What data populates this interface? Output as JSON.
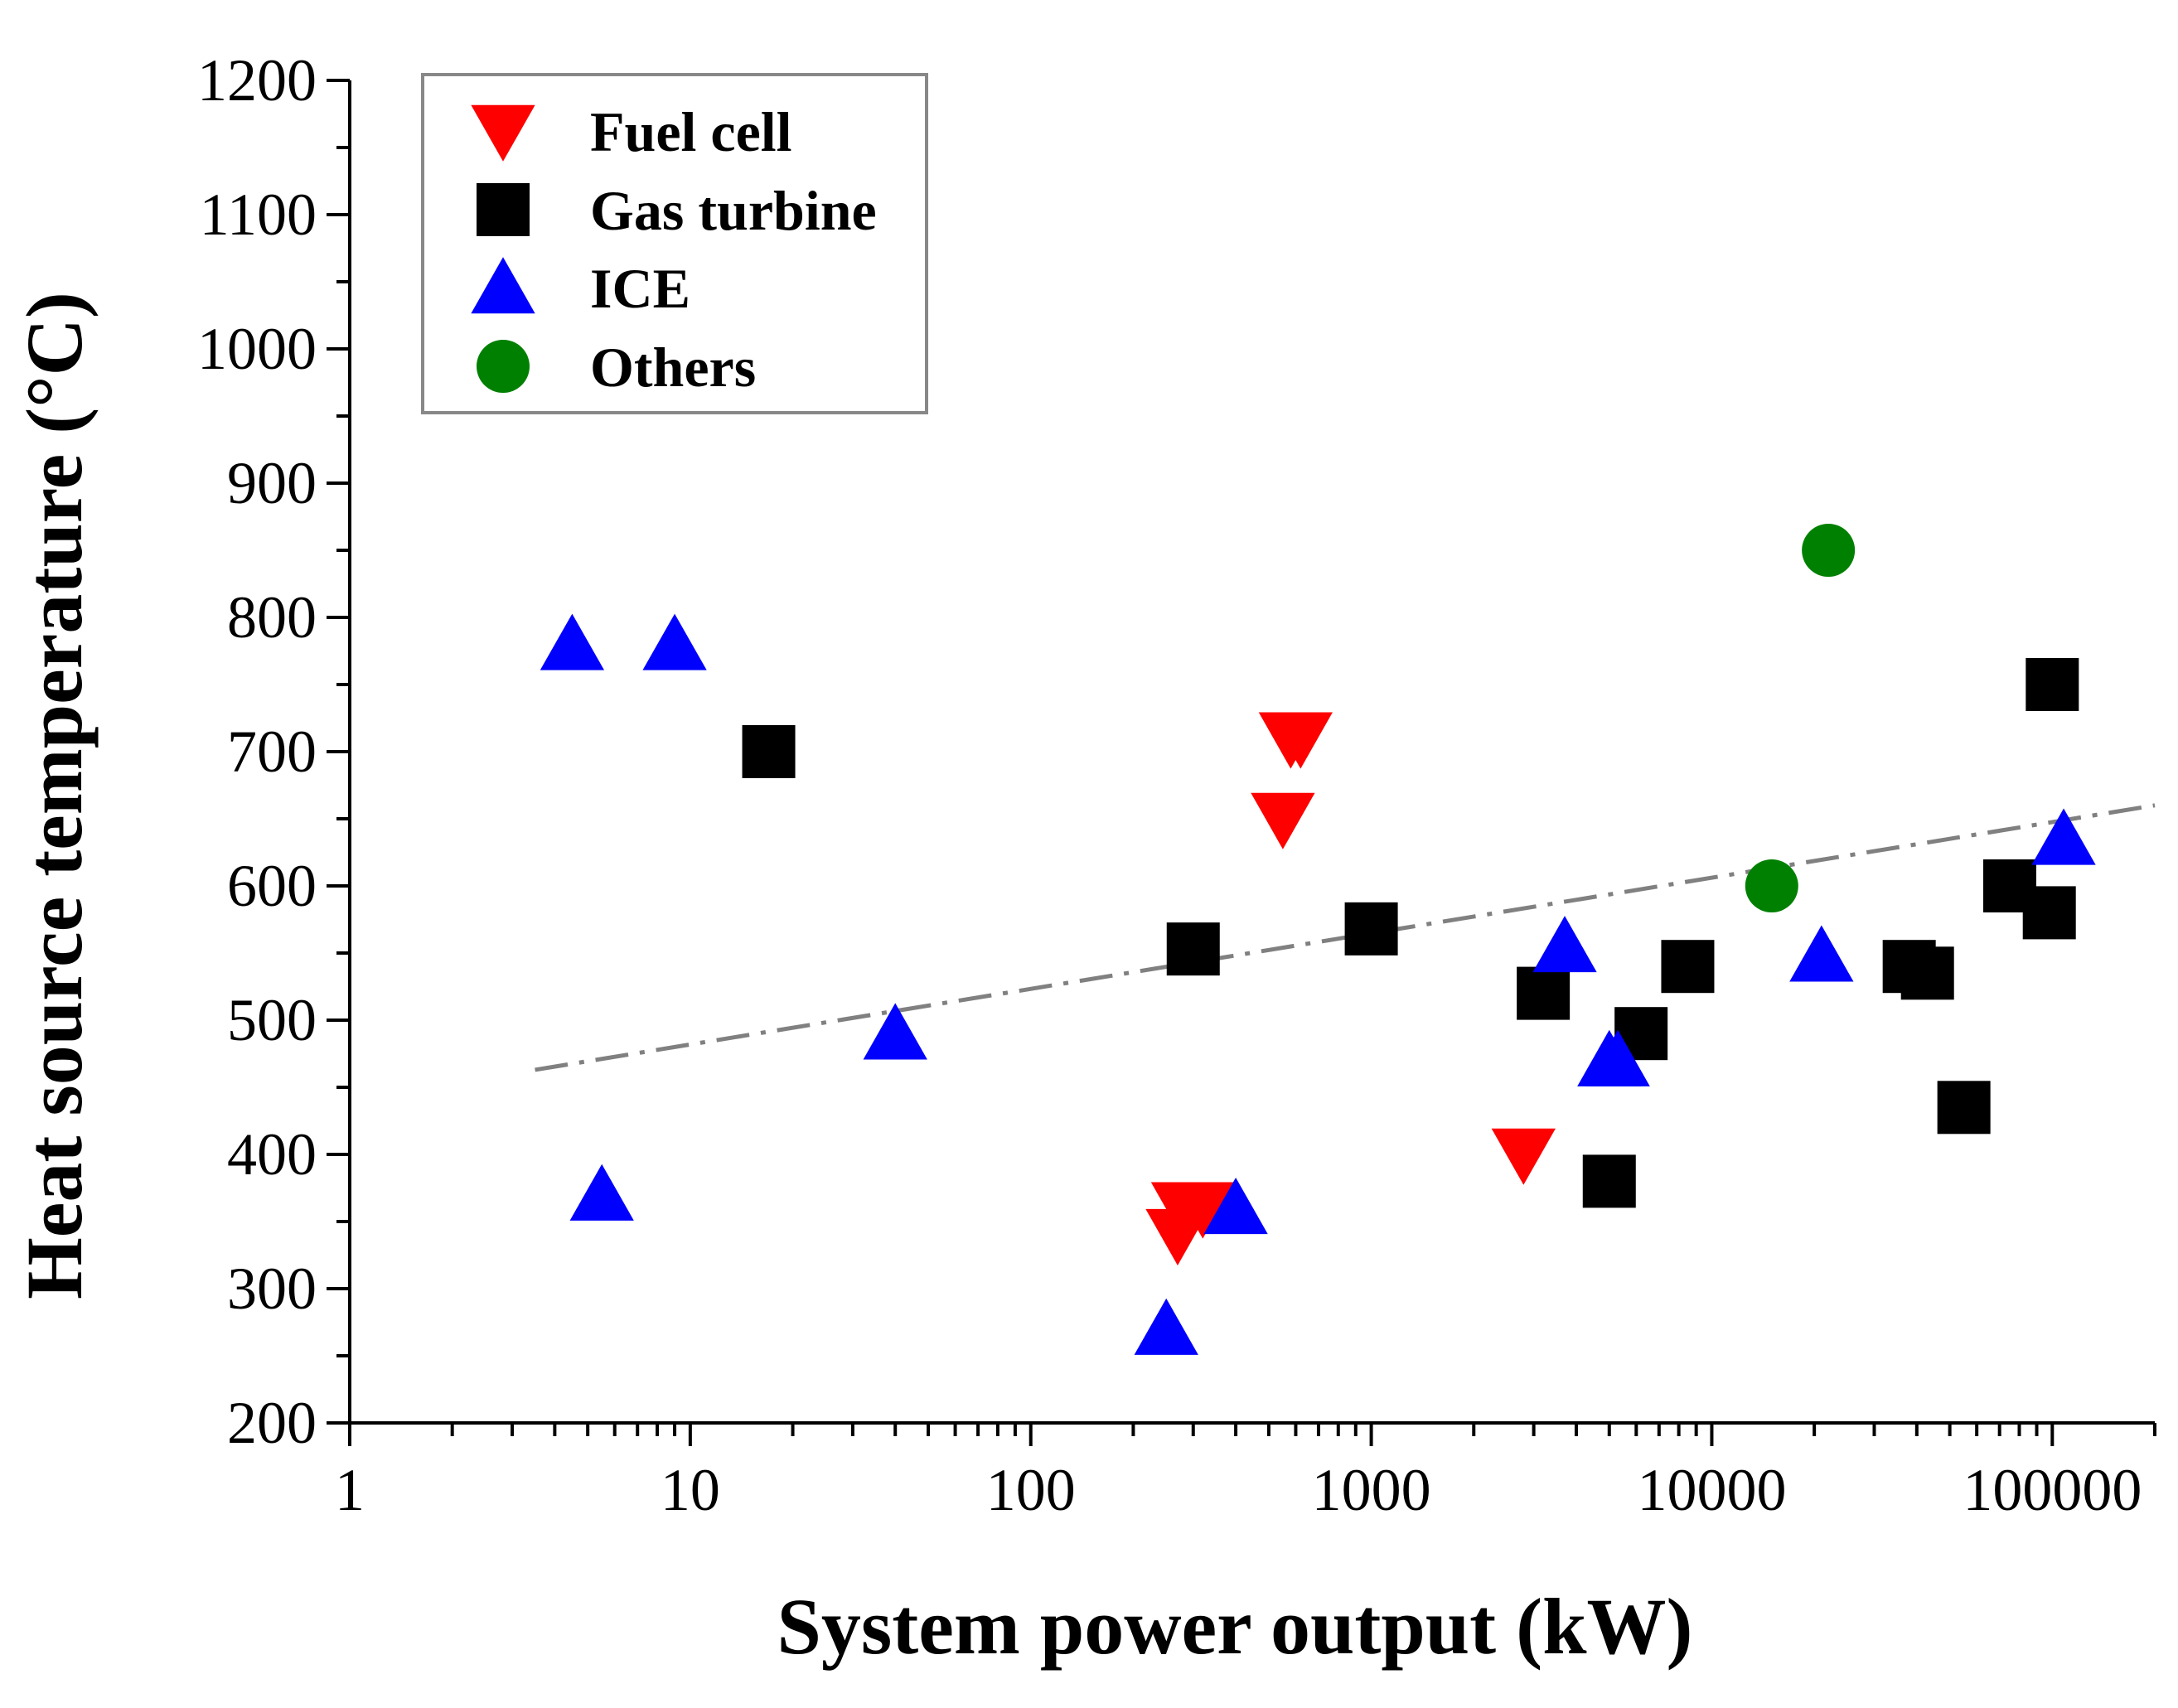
{
  "chart_data": {
    "type": "scatter",
    "title": "",
    "xlabel": "System power output (kW)",
    "ylabel": "Heat source temperature (°C)",
    "xscale": "log",
    "xlim": [
      1,
      200000
    ],
    "ylim": [
      200,
      1200
    ],
    "x_ticks": [
      1,
      10,
      100,
      1000,
      10000,
      100000
    ],
    "x_tick_labels": [
      "1",
      "10",
      "100",
      "1000",
      "10000",
      "100000"
    ],
    "y_ticks": [
      200,
      300,
      400,
      500,
      600,
      700,
      800,
      900,
      1000,
      1100,
      1200
    ],
    "y_tick_labels": [
      "200",
      "300",
      "400",
      "500",
      "600",
      "700",
      "800",
      "900",
      "1000",
      "1100",
      "1200"
    ],
    "legend_position": "top-left",
    "series": [
      {
        "name": "Fuel cell",
        "marker": "triangle-down",
        "color": "#ff0000",
        "points": [
          [
            270,
            340
          ],
          [
            280,
            360
          ],
          [
            320,
            360
          ],
          [
            550,
            650
          ],
          [
            580,
            710
          ],
          [
            620,
            710
          ],
          [
            2800,
            400
          ]
        ]
      },
      {
        "name": "Gas turbine",
        "marker": "square",
        "color": "#000000",
        "points": [
          [
            17,
            700
          ],
          [
            300,
            553
          ],
          [
            1000,
            568
          ],
          [
            3200,
            520
          ],
          [
            5000,
            380
          ],
          [
            6200,
            490
          ],
          [
            8500,
            540
          ],
          [
            38000,
            540
          ],
          [
            43000,
            535
          ],
          [
            55000,
            435
          ],
          [
            75000,
            600
          ],
          [
            98000,
            580
          ],
          [
            100000,
            750
          ]
        ]
      },
      {
        "name": "ICE",
        "marker": "triangle-up",
        "color": "#0000ff",
        "points": [
          [
            4.5,
            780
          ],
          [
            9,
            780
          ],
          [
            5.5,
            370
          ],
          [
            40,
            490
          ],
          [
            250,
            270
          ],
          [
            400,
            360
          ],
          [
            3700,
            555
          ],
          [
            5000,
            470
          ],
          [
            5300,
            470
          ],
          [
            21000,
            548
          ],
          [
            108000,
            635
          ]
        ]
      },
      {
        "name": "Others",
        "marker": "circle",
        "color": "#008000",
        "points": [
          [
            15000,
            600
          ],
          [
            22000,
            850
          ]
        ]
      }
    ],
    "trendline": {
      "style": "dash-dot",
      "color": "#808080",
      "points": [
        [
          3.5,
          463
        ],
        [
          200000,
          660
        ]
      ]
    }
  }
}
